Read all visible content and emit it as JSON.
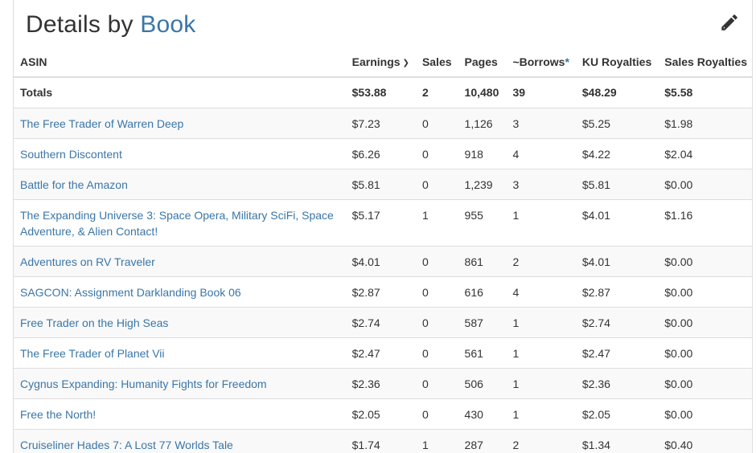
{
  "header": {
    "title_prefix": "Details by",
    "title_accent": "Book",
    "edit_icon": "pencil-icon",
    "accent_color": "#3a76a8"
  },
  "columns": {
    "asin": "ASIN",
    "earnings": "Earnings",
    "sales": "Sales",
    "pages": "Pages",
    "borrows": "~Borrows",
    "borrows_note": "*",
    "ku_royalties": "KU Royalties",
    "sales_royalties": "Sales Royalties"
  },
  "sort_icon": "chevron-down-icon",
  "totals": {
    "label": "Totals",
    "earnings": "$53.88",
    "sales": "2",
    "pages": "10,480",
    "borrows": "39",
    "ku_royalties": "$48.29",
    "sales_royalties": "$5.58"
  },
  "books": [
    {
      "title": "The Free Trader of Warren Deep",
      "earnings": "$7.23",
      "sales": "0",
      "pages": "1,126",
      "borrows": "3",
      "ku_royalties": "$5.25",
      "sales_royalties": "$1.98"
    },
    {
      "title": "Southern Discontent",
      "earnings": "$6.26",
      "sales": "0",
      "pages": "918",
      "borrows": "4",
      "ku_royalties": "$4.22",
      "sales_royalties": "$2.04"
    },
    {
      "title": "Battle for the Amazon",
      "earnings": "$5.81",
      "sales": "0",
      "pages": "1,239",
      "borrows": "3",
      "ku_royalties": "$5.81",
      "sales_royalties": "$0.00"
    },
    {
      "title": "The Expanding Universe 3: Space Opera, Military SciFi, Space Adventure, & Alien Contact!",
      "earnings": "$5.17",
      "sales": "1",
      "pages": "955",
      "borrows": "1",
      "ku_royalties": "$4.01",
      "sales_royalties": "$1.16"
    },
    {
      "title": "Adventures on RV Traveler",
      "earnings": "$4.01",
      "sales": "0",
      "pages": "861",
      "borrows": "2",
      "ku_royalties": "$4.01",
      "sales_royalties": "$0.00"
    },
    {
      "title": "SAGCON: Assignment Darklanding Book 06",
      "earnings": "$2.87",
      "sales": "0",
      "pages": "616",
      "borrows": "4",
      "ku_royalties": "$2.87",
      "sales_royalties": "$0.00"
    },
    {
      "title": "Free Trader on the High Seas",
      "earnings": "$2.74",
      "sales": "0",
      "pages": "587",
      "borrows": "1",
      "ku_royalties": "$2.74",
      "sales_royalties": "$0.00"
    },
    {
      "title": "The Free Trader of Planet Vii",
      "earnings": "$2.47",
      "sales": "0",
      "pages": "561",
      "borrows": "1",
      "ku_royalties": "$2.47",
      "sales_royalties": "$0.00"
    },
    {
      "title": "Cygnus Expanding: Humanity Fights for Freedom",
      "earnings": "$2.36",
      "sales": "0",
      "pages": "506",
      "borrows": "1",
      "ku_royalties": "$2.36",
      "sales_royalties": "$0.00"
    },
    {
      "title": "Free the North!",
      "earnings": "$2.05",
      "sales": "0",
      "pages": "430",
      "borrows": "1",
      "ku_royalties": "$2.05",
      "sales_royalties": "$0.00"
    },
    {
      "title": "Cruiseliner Hades 7: A Lost 77 Worlds Tale",
      "earnings": "$1.74",
      "sales": "1",
      "pages": "287",
      "borrows": "2",
      "ku_royalties": "$1.34",
      "sales_royalties": "$0.40"
    }
  ]
}
